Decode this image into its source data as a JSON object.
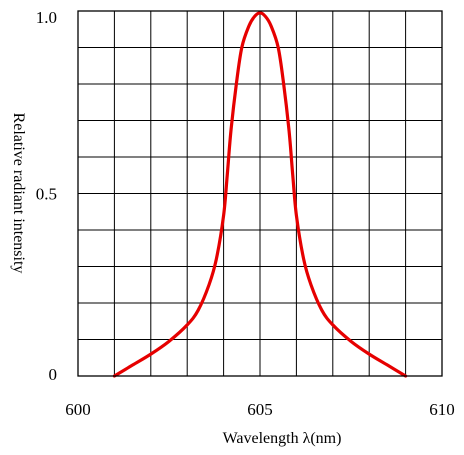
{
  "chart_data": {
    "type": "line",
    "title": "",
    "xlabel": "Wavelength λ(nm)",
    "ylabel": "Relative radiant intensity",
    "xlim": [
      600,
      610
    ],
    "ylim": [
      0,
      1.0
    ],
    "grid": true,
    "x_tick_labels": [
      {
        "value": 600,
        "label": "600"
      },
      {
        "value": 605,
        "label": "605"
      },
      {
        "value": 610,
        "label": "610"
      }
    ],
    "y_tick_labels": [
      {
        "value": 0,
        "label": "0"
      },
      {
        "value": 0.5,
        "label": "0.5"
      },
      {
        "value": 1.0,
        "label": "1.0"
      }
    ],
    "x_grid_step": 1,
    "y_grid_step": 0.1,
    "series": [
      {
        "color": "#e60000",
        "x": [
          601.0,
          601.5,
          602.0,
          602.5,
          603.0,
          603.3,
          603.6,
          603.8,
          604.0,
          604.1,
          604.2,
          604.35,
          604.5,
          604.7,
          604.85,
          605.0,
          605.15,
          605.3,
          605.5,
          605.65,
          605.8,
          605.9,
          606.0,
          606.2,
          606.4,
          606.7,
          607.0,
          607.5,
          608.0,
          608.5,
          609.0
        ],
        "y": [
          0.0,
          0.03,
          0.06,
          0.095,
          0.14,
          0.18,
          0.25,
          0.32,
          0.44,
          0.55,
          0.67,
          0.8,
          0.9,
          0.96,
          0.985,
          0.995,
          0.985,
          0.96,
          0.9,
          0.8,
          0.67,
          0.55,
          0.44,
          0.32,
          0.25,
          0.18,
          0.14,
          0.095,
          0.06,
          0.03,
          0.0
        ]
      }
    ]
  }
}
